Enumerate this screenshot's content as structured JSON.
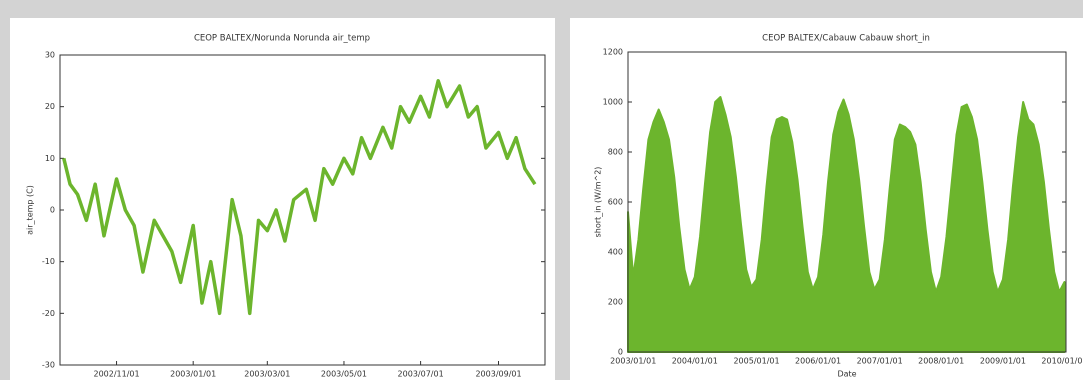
{
  "chart_data": [
    {
      "type": "line",
      "title": "CEOP BALTEX/Norunda Norunda air_temp",
      "y_label": "air_temp (C)",
      "color": "#6cb52d",
      "x": [
        "2002/09/20",
        "2002/09/25",
        "2002/10/01",
        "2002/10/08",
        "2002/10/15",
        "2002/10/22",
        "2002/11/01",
        "2002/11/08",
        "2002/11/15",
        "2002/11/22",
        "2002/12/01",
        "2002/12/08",
        "2002/12/15",
        "2002/12/22",
        "2003/01/01",
        "2003/01/08",
        "2003/01/15",
        "2003/01/22",
        "2003/02/01",
        "2003/02/08",
        "2003/02/15",
        "2003/02/22",
        "2003/03/01",
        "2003/03/08",
        "2003/03/15",
        "2003/03/22",
        "2003/04/01",
        "2003/04/08",
        "2003/04/15",
        "2003/04/22",
        "2003/05/01",
        "2003/05/08",
        "2003/05/15",
        "2003/05/22",
        "2003/06/01",
        "2003/06/08",
        "2003/06/15",
        "2003/06/22",
        "2003/07/01",
        "2003/07/08",
        "2003/07/15",
        "2003/07/22",
        "2003/08/01",
        "2003/08/08",
        "2003/08/15",
        "2003/08/22",
        "2003/09/01",
        "2003/09/08",
        "2003/09/15",
        "2003/09/22",
        "2003/09/30"
      ],
      "values": [
        10,
        5,
        3,
        -2,
        5,
        -5,
        6,
        0,
        -3,
        -12,
        -2,
        -5,
        -8,
        -14,
        -3,
        -18,
        -10,
        -20,
        2,
        -5,
        -20,
        -2,
        -4,
        0,
        -6,
        2,
        4,
        -2,
        8,
        5,
        10,
        7,
        14,
        10,
        16,
        12,
        20,
        17,
        22,
        18,
        25,
        20,
        24,
        18,
        20,
        12,
        15,
        10,
        14,
        8,
        5
      ],
      "xlim": [
        "2002/09/17",
        "2003/10/08"
      ],
      "xticks": [
        "2002/11/01",
        "2003/01/01",
        "2003/03/01",
        "2003/05/01",
        "2003/07/01",
        "2003/09/01"
      ],
      "ylim": [
        -30,
        30
      ],
      "yticks": [
        -30,
        -20,
        -10,
        0,
        10,
        20,
        30
      ]
    },
    {
      "type": "area",
      "title": "CEOP BALTEX/Cabauw Cabauw short_in",
      "x_label": "Date",
      "y_label": "short_in (W/m^2)",
      "color": "#6cb52d",
      "x": [
        "2002/12/01",
        "2003/01/01",
        "2003/02/01",
        "2003/03/01",
        "2003/04/01",
        "2003/05/01",
        "2003/06/01",
        "2003/07/01",
        "2003/08/01",
        "2003/09/01",
        "2003/10/01",
        "2003/11/01",
        "2003/12/01",
        "2004/01/01",
        "2004/02/01",
        "2004/03/01",
        "2004/04/01",
        "2004/05/01",
        "2004/06/01",
        "2004/07/01",
        "2004/08/01",
        "2004/09/01",
        "2004/10/01",
        "2004/11/01",
        "2004/12/01",
        "2005/01/01",
        "2005/02/01",
        "2005/03/01",
        "2005/04/01",
        "2005/05/01",
        "2005/06/01",
        "2005/07/01",
        "2005/08/01",
        "2005/09/01",
        "2005/10/01",
        "2005/11/01",
        "2005/12/01",
        "2006/01/01",
        "2006/02/01",
        "2006/03/01",
        "2006/04/01",
        "2006/05/01",
        "2006/06/01",
        "2006/07/01",
        "2006/08/01",
        "2006/09/01",
        "2006/10/01",
        "2006/11/01",
        "2006/12/01",
        "2007/01/01",
        "2007/02/01",
        "2007/03/01",
        "2007/04/01",
        "2007/05/01",
        "2007/06/01",
        "2007/07/01",
        "2007/08/01",
        "2007/09/01",
        "2007/10/01",
        "2007/11/01",
        "2007/12/01",
        "2008/01/01",
        "2008/02/01",
        "2008/03/01",
        "2008/04/01",
        "2008/05/01",
        "2008/06/01",
        "2008/07/01",
        "2008/08/01",
        "2008/09/01",
        "2008/10/01",
        "2008/11/01",
        "2008/12/01",
        "2009/01/01",
        "2009/02/01",
        "2009/03/01",
        "2009/04/01",
        "2009/05/01",
        "2009/06/01",
        "2009/07/01",
        "2009/08/01",
        "2009/09/01",
        "2009/10/01",
        "2009/11/01",
        "2009/12/01",
        "2010/01/01"
      ],
      "values": [
        560,
        300,
        450,
        650,
        850,
        920,
        970,
        920,
        850,
        700,
        500,
        330,
        250,
        300,
        460,
        670,
        880,
        1000,
        1020,
        950,
        860,
        700,
        510,
        330,
        260,
        290,
        450,
        660,
        860,
        930,
        940,
        930,
        840,
        690,
        500,
        320,
        250,
        300,
        470,
        680,
        870,
        960,
        1010,
        950,
        850,
        690,
        500,
        320,
        250,
        290,
        450,
        650,
        850,
        910,
        900,
        880,
        830,
        680,
        490,
        320,
        240,
        300,
        460,
        660,
        870,
        980,
        990,
        940,
        850,
        680,
        490,
        320,
        240,
        290,
        450,
        660,
        860,
        1000,
        930,
        910,
        830,
        680,
        490,
        320,
        240,
        280
      ],
      "xlim": [
        "2002/12/01",
        "2010/01/10"
      ],
      "xticks": [
        "2003/01/01",
        "2004/01/01",
        "2005/01/01",
        "2006/01/01",
        "2007/01/01",
        "2008/01/01",
        "2009/01/01",
        "2010/01/01"
      ],
      "ylim": [
        0,
        1200
      ],
      "yticks": [
        0,
        200,
        400,
        600,
        800,
        1000,
        1200
      ]
    }
  ]
}
